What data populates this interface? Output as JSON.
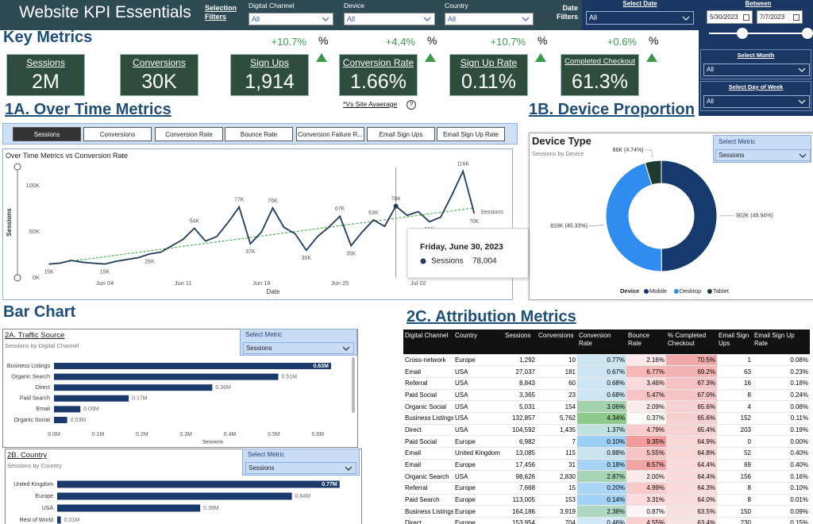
{
  "header": {
    "title": "Website KPI Essentials",
    "selection_filters": "Selection Filters",
    "filters": [
      {
        "label": "Digital Channel",
        "value": "All"
      },
      {
        "label": "Device",
        "value": "All"
      },
      {
        "label": "Country",
        "value": "All"
      }
    ],
    "date_filters": "Date Filters",
    "select_date": "Select Date",
    "select_date_value": "All",
    "between": "Between",
    "start_date": "5/30/2023",
    "end_date": "7/7/2023",
    "select_month": {
      "label": "Select Month",
      "value": "All"
    },
    "select_day_of_week": {
      "label": "Select Day of Week",
      "value": "All"
    }
  },
  "key_metrics": {
    "title": "Key Metrics",
    "note": "*Vs Site Avaerage",
    "note_icon": "?",
    "cards": [
      {
        "label": "Sessions",
        "value": "2M"
      },
      {
        "label": "Conversions",
        "value": "30K"
      },
      {
        "label": "Sign Ups",
        "value": "1,914",
        "delta": "+10.7%",
        "delta_unit": "%"
      },
      {
        "label": "Conversion Rate",
        "value": "1.66%",
        "delta": "+4.4%",
        "delta_unit": "%"
      },
      {
        "label": "Sign Up Rate",
        "value": "0.11%",
        "delta": "+10.7%",
        "delta_unit": "%"
      },
      {
        "label": "Completed Checkout",
        "value": "61.3%",
        "delta": "+0.6%",
        "delta_unit": "%"
      }
    ]
  },
  "sections": {
    "over_time": "1A. Over Time Metrics",
    "device": "1B. Device Proportion",
    "bar": "Bar Chart",
    "attribution": "2C. Attribution Metrics"
  },
  "tabs": [
    "Sessions",
    "Conversions",
    "Conversion Rate",
    "Bounce Rate",
    "Conversion Failure R...",
    "Email Sign Ups",
    "Email Sign Up Rate"
  ],
  "chart_data": [
    {
      "type": "line",
      "title": "Over Time Metrics vs Conversion Rate",
      "x_label": "Date",
      "y_label": "Sessions",
      "x": [
        "2023-05-30",
        "2023-05-31",
        "2023-06-01",
        "2023-06-02",
        "2023-06-03",
        "2023-06-04",
        "2023-06-05",
        "2023-06-06",
        "2023-06-07",
        "2023-06-08",
        "2023-06-09",
        "2023-06-10",
        "2023-06-11",
        "2023-06-12",
        "2023-06-13",
        "2023-06-14",
        "2023-06-15",
        "2023-06-16",
        "2023-06-17",
        "2023-06-18",
        "2023-06-19",
        "2023-06-20",
        "2023-06-21",
        "2023-06-22",
        "2023-06-23",
        "2023-06-24",
        "2023-06-25",
        "2023-06-26",
        "2023-06-27",
        "2023-06-28",
        "2023-06-29",
        "2023-06-30",
        "2023-07-01",
        "2023-07-02",
        "2023-07-03",
        "2023-07-04",
        "2023-07-05",
        "2023-07-06",
        "2023-07-07"
      ],
      "series": [
        {
          "name": "Sessions",
          "color": "#1f3b57",
          "values": [
            15000,
            16000,
            19000,
            17000,
            16000,
            15000,
            18000,
            20000,
            22000,
            26000,
            28000,
            35000,
            42000,
            54000,
            40000,
            45000,
            60000,
            77000,
            37000,
            50000,
            76000,
            55000,
            48000,
            30000,
            45000,
            55000,
            67000,
            35000,
            50000,
            63000,
            56000,
            78004,
            68000,
            72000,
            61000,
            66000,
            90000,
            116000,
            70000
          ],
          "value_labels": [
            "15K",
            null,
            null,
            null,
            null,
            "15K",
            null,
            null,
            null,
            "26K",
            null,
            null,
            null,
            "54K",
            null,
            null,
            null,
            "77K",
            "37K",
            null,
            "76K",
            null,
            null,
            "30K",
            null,
            null,
            "67K",
            "35K",
            null,
            "63K",
            null,
            "78K",
            null,
            null,
            "61K",
            null,
            null,
            "116K",
            "70K"
          ]
        }
      ],
      "trend": {
        "color": "#4caf50",
        "values": [
          15000,
          76000
        ]
      },
      "xlim": [
        "2023-05-30",
        "2023-07-07"
      ],
      "xticks": [
        {
          "value": "2023-06-04",
          "label": "Jun 04"
        },
        {
          "value": "2023-06-11",
          "label": "Jun 11"
        },
        {
          "value": "2023-06-18",
          "label": "Jun 18"
        },
        {
          "value": "2023-06-25",
          "label": "Jun 25"
        },
        {
          "value": "2023-07-02",
          "label": "Jul 02"
        }
      ],
      "ylim": [
        0,
        120000
      ],
      "yticks": [
        {
          "value": 0,
          "label": "0K"
        },
        {
          "value": 50000,
          "label": "50K"
        },
        {
          "value": 100000,
          "label": "100K"
        }
      ],
      "grid": false,
      "tooltip": {
        "index": 31,
        "title": "Friday, June 30, 2023",
        "value_label": "78,004"
      }
    },
    {
      "type": "pie",
      "donut": true,
      "title": "Device Type",
      "subtitle": "Sessions by Device",
      "select_metric": {
        "label": "Select Metric",
        "value": "Sessions"
      },
      "legend_title": "Device",
      "legend": "bottom",
      "categories": [
        "Mobile",
        "Desktop",
        "Tablet"
      ],
      "values": [
        49.94,
        45.33,
        4.74
      ],
      "value_labels": [
        "902K (49.94%)",
        "818K (45.33%)",
        "86K (4.74%)"
      ],
      "colors": [
        "#173a6e",
        "#2f8cf0",
        "#1e3b2f"
      ]
    },
    {
      "type": "bar",
      "orientation": "horizontal",
      "title": "2A. Traffic Source",
      "subtitle": "Sessions by Digital Channel",
      "select_metric": {
        "label": "Select Metric",
        "value": "Sessions"
      },
      "x_label": "Sessions",
      "color": "#1a3a6b",
      "categories": [
        "Business Listings",
        "Organic Search",
        "Direct",
        "Paid Search",
        "Email",
        "Organic Social"
      ],
      "values": [
        630000,
        510000,
        360000,
        170000,
        60000,
        30000
      ],
      "value_labels": [
        "0.63M",
        "0.51M",
        "0.36M",
        "0.17M",
        "0.06M",
        "0.03M"
      ],
      "xlim": [
        0,
        650000
      ],
      "xticks": [
        {
          "value": 0,
          "label": "0.0M"
        },
        {
          "value": 100000,
          "label": "0.1M"
        },
        {
          "value": 200000,
          "label": "0.2M"
        },
        {
          "value": 300000,
          "label": "0.3M"
        },
        {
          "value": 400000,
          "label": "0.4M"
        },
        {
          "value": 500000,
          "label": "0.5M"
        },
        {
          "value": 600000,
          "label": "0.6M"
        }
      ]
    },
    {
      "type": "bar",
      "orientation": "horizontal",
      "title": "2B. Country",
      "subtitle": "Sessions by Country",
      "select_metric": {
        "label": "Select Metric",
        "value": "Sessions"
      },
      "color": "#1a3a6b",
      "categories": [
        "United Kingdom",
        "Europe",
        "USA",
        "Rest of World"
      ],
      "values": [
        770000,
        640000,
        390000,
        10000
      ],
      "value_labels": [
        "0.77M",
        "0.64M",
        "0.39M",
        "0.01M"
      ],
      "xlim": [
        0,
        800000
      ]
    }
  ],
  "table": {
    "columns": [
      "Digital Channel",
      "Country",
      "Sessions",
      "Conversions",
      "Conversion Rate",
      "Bounce Rate",
      "% Completed Checkout",
      "Email Sign Ups",
      "Email Sign Up Rate"
    ],
    "rows": [
      [
        "Cross-network",
        "Europe",
        "1,292",
        "10",
        "0.77%",
        "2.16%",
        "70.5%",
        "1",
        "0.08%"
      ],
      [
        "Email",
        "USA",
        "27,037",
        "181",
        "0.67%",
        "6.77%",
        "69.2%",
        "63",
        "0.23%"
      ],
      [
        "Referral",
        "USA",
        "8,843",
        "60",
        "0.68%",
        "3.46%",
        "67.3%",
        "16",
        "0.18%"
      ],
      [
        "Paid Social",
        "USA",
        "3,365",
        "23",
        "0.68%",
        "5.47%",
        "67.0%",
        "8",
        "0.24%"
      ],
      [
        "Organic Social",
        "USA",
        "5,031",
        "154",
        "3.06%",
        "2.09%",
        "65.6%",
        "4",
        "0.08%"
      ],
      [
        "Business Listings",
        "USA",
        "132,857",
        "5,762",
        "4.34%",
        "0.37%",
        "65.6%",
        "152",
        "0.11%"
      ],
      [
        "Direct",
        "USA",
        "104,592",
        "1,435",
        "1.37%",
        "4.79%",
        "65.4%",
        "203",
        "0.19%"
      ],
      [
        "Paid Social",
        "Europe",
        "6,982",
        "7",
        "0.10%",
        "9.35%",
        "64.9%",
        "0",
        "0.00%"
      ],
      [
        "Email",
        "United Kingdom",
        "13,085",
        "115",
        "0.88%",
        "5.55%",
        "64.8%",
        "52",
        "0.40%"
      ],
      [
        "Email",
        "Europe",
        "17,456",
        "31",
        "0.18%",
        "8.57%",
        "64.4%",
        "69",
        "0.40%"
      ],
      [
        "Organic Search",
        "USA",
        "98,626",
        "2,830",
        "2.87%",
        "2.00%",
        "64.4%",
        "156",
        "0.16%"
      ],
      [
        "Referral",
        "Europe",
        "7,668",
        "15",
        "0.20%",
        "4.99%",
        "64.3%",
        "8",
        "0.10%"
      ],
      [
        "Paid Search",
        "Europe",
        "113,005",
        "153",
        "0.14%",
        "3.31%",
        "64.0%",
        "8",
        "0.01%"
      ],
      [
        "Business Listings",
        "Europe",
        "164,186",
        "3,919",
        "2.38%",
        "0.87%",
        "63.5%",
        "150",
        "0.09%"
      ],
      [
        "Direct",
        "Europe",
        "153,954",
        "704",
        "0.46%",
        "4.55%",
        "63.4%",
        "230",
        "0.15%"
      ]
    ]
  }
}
